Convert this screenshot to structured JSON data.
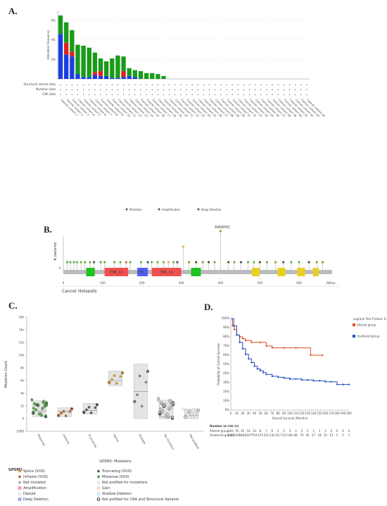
{
  "panel_labels": {
    "a": "A.",
    "b": "B.",
    "c": "C.",
    "d": "D."
  },
  "chart_data": [
    {
      "type": "bar",
      "id": "A",
      "ylabel": "Alteration Frequency",
      "yticks": [
        "2%",
        "4%",
        "6%"
      ],
      "ylim": [
        0,
        7
      ],
      "grid": true,
      "row_labels": [
        "Structural variant data",
        "Mutation data",
        "CNA data"
      ],
      "categories": [
        "Cancer cohort 1",
        "Cancer cohort 2",
        "Cancer cohort 3",
        "Cancer cohort 4",
        "Cancer cohort 5",
        "Cancer cohort 6",
        "Cancer cohort 7",
        "Cancer cohort 8",
        "Cancer cohort 9",
        "Cancer cohort 10",
        "Cancer cohort 11",
        "Cancer cohort 12",
        "Cancer cohort 13",
        "Cancer cohort 14",
        "Cancer cohort 15",
        "Cancer cohort 16",
        "Cancer cohort 17",
        "Cancer cohort 18",
        "Cancer cohort 19",
        "Cancer cohort 20",
        "Cancer cohort 21",
        "Cancer cohort 22",
        "Cancer cohort 23",
        "Cancer cohort 24",
        "Cancer cohort 25",
        "Cancer cohort 26",
        "Cancer cohort 27",
        "Cancer cohort 28",
        "Cancer cohort 29",
        "Cancer cohort 30",
        "Cancer cohort 31",
        "Cancer cohort 32",
        "Cancer cohort 33",
        "Cancer cohort 34",
        "Cancer cohort 35",
        "Cancer cohort 36",
        "Cancer cohort 37",
        "Cancer cohort 38",
        "Cancer cohort 39",
        "Cancer cohort 40",
        "Cancer cohort 41",
        "Cancer cohort 42",
        "Cancer cohort 43",
        "Cancer cohort 44"
      ],
      "series": [
        {
          "name": "Mutation",
          "color": "#1a9a1a",
          "values": [
            1.9,
            2.1,
            2.2,
            3.0,
            3.2,
            3.0,
            2.0,
            1.3,
            1.5,
            2.0,
            2.3,
            1.5,
            0.8,
            0.7,
            0.8,
            0.6,
            0.6,
            0.5,
            0.3,
            0,
            0,
            0,
            0,
            0,
            0,
            0,
            0,
            0,
            0,
            0,
            0,
            0,
            0,
            0,
            0,
            0,
            0,
            0,
            0,
            0,
            0,
            0,
            0,
            0
          ]
        },
        {
          "name": "Amplification",
          "color": "#e02020",
          "values": [
            0,
            1.2,
            0.5,
            0,
            0,
            0,
            0.3,
            0.5,
            0,
            0,
            0,
            0.6,
            0,
            0,
            0,
            0,
            0,
            0,
            0,
            0,
            0,
            0,
            0,
            0,
            0,
            0,
            0,
            0,
            0,
            0,
            0,
            0,
            0,
            0,
            0,
            0,
            0,
            0,
            0,
            0,
            0,
            0,
            0,
            0
          ]
        },
        {
          "name": "Deep Deletion",
          "color": "#1a3de0",
          "values": [
            4.6,
            2.5,
            2.3,
            0.5,
            0.2,
            0.2,
            0.4,
            0.3,
            0.3,
            0.1,
            0.1,
            0.2,
            0.3,
            0.2,
            0,
            0,
            0,
            0,
            0,
            0,
            0,
            0,
            0,
            0,
            0,
            0,
            0,
            0,
            0,
            0,
            0,
            0,
            0,
            0,
            0,
            0,
            0,
            0,
            0,
            0,
            0,
            0,
            0,
            0
          ]
        }
      ],
      "legend": [
        "Mutation",
        "Amplification",
        "Deep Deletion"
      ]
    },
    {
      "type": "scatter",
      "id": "B",
      "ylabel": "# patients",
      "annotation": "R400H/C",
      "xlabel": "Cancer Hotspots",
      "xticks": [
        "0",
        "100",
        "200",
        "300",
        "400",
        "500",
        "600"
      ],
      "length_label": "684aa",
      "domains": [
        "TPR_12",
        "TP...",
        "TPR_12"
      ],
      "lollipops": [
        {
          "x": 10,
          "y": 1,
          "c": "#6ab04c"
        },
        {
          "x": 18,
          "y": 1,
          "c": "#6ab04c"
        },
        {
          "x": 27,
          "y": 1,
          "c": "#6ab04c"
        },
        {
          "x": 35,
          "y": 1,
          "c": "#6ab04c"
        },
        {
          "x": 45,
          "y": 1,
          "c": "#6ab04c"
        },
        {
          "x": 55,
          "y": 1,
          "c": "#6ab04c"
        },
        {
          "x": 68,
          "y": 1,
          "c": "#6ab04c"
        },
        {
          "x": 78,
          "y": 1,
          "c": "#555"
        },
        {
          "x": 95,
          "y": 1,
          "c": "#6ab04c"
        },
        {
          "x": 105,
          "y": 1,
          "c": "#6ab04c"
        },
        {
          "x": 130,
          "y": 1,
          "c": "#6ab04c"
        },
        {
          "x": 145,
          "y": 1,
          "c": "#6ab04c"
        },
        {
          "x": 160,
          "y": 1,
          "c": "#c08040"
        },
        {
          "x": 170,
          "y": 1,
          "c": "#6ab04c"
        },
        {
          "x": 198,
          "y": 1,
          "c": "#6ab04c"
        },
        {
          "x": 215,
          "y": 1,
          "c": "#555"
        },
        {
          "x": 225,
          "y": 1,
          "c": "#6ab04c"
        },
        {
          "x": 240,
          "y": 1,
          "c": "#6ab04c"
        },
        {
          "x": 255,
          "y": 1,
          "c": "#6ab04c"
        },
        {
          "x": 268,
          "y": 1,
          "c": "#e0b050"
        },
        {
          "x": 280,
          "y": 1,
          "c": "#6ab04c"
        },
        {
          "x": 290,
          "y": 1,
          "c": "#555"
        },
        {
          "x": 305,
          "y": 2,
          "c": "#e0b050"
        },
        {
          "x": 320,
          "y": 1,
          "c": "#6ab04c"
        },
        {
          "x": 338,
          "y": 1,
          "c": "#555"
        },
        {
          "x": 355,
          "y": 1,
          "c": "#6ab04c"
        },
        {
          "x": 370,
          "y": 1,
          "c": "#555"
        },
        {
          "x": 385,
          "y": 1,
          "c": "#6ab04c"
        },
        {
          "x": 400,
          "y": 3,
          "c": "#6ab04c"
        },
        {
          "x": 420,
          "y": 1,
          "c": "#555"
        },
        {
          "x": 435,
          "y": 1,
          "c": "#6ab04c"
        },
        {
          "x": 452,
          "y": 1,
          "c": "#555"
        },
        {
          "x": 470,
          "y": 1,
          "c": "#6ab04c"
        },
        {
          "x": 485,
          "y": 1,
          "c": "#6ab04c"
        },
        {
          "x": 500,
          "y": 1,
          "c": "#555"
        },
        {
          "x": 518,
          "y": 1,
          "c": "#6ab04c"
        },
        {
          "x": 540,
          "y": 1,
          "c": "#6ab04c"
        },
        {
          "x": 560,
          "y": 1,
          "c": "#555"
        },
        {
          "x": 580,
          "y": 1,
          "c": "#6ab04c"
        },
        {
          "x": 600,
          "y": 1,
          "c": "#6ab04c"
        },
        {
          "x": 625,
          "y": 1,
          "c": "#555"
        },
        {
          "x": 645,
          "y": 1,
          "c": "#6ab04c"
        },
        {
          "x": 660,
          "y": 1,
          "c": "#6ab04c"
        }
      ]
    },
    {
      "type": "scatter",
      "id": "C",
      "ylabel": "Mutation Count",
      "xlabel": "GPSM2: Mutations",
      "yticks": [
        "-2000",
        "0",
        "2k",
        "4k",
        "6k",
        "8k",
        "10k",
        "12k",
        "14k",
        "16k"
      ],
      "ylim": [
        -2000,
        16000
      ],
      "categories": [
        "Missense",
        "Inframe",
        "Truncating",
        "Splice",
        "Multiple",
        "No mutation",
        "Not profiled"
      ],
      "boxes": [
        {
          "q1": 300,
          "q3": 2800,
          "median": 1200
        },
        {
          "q1": 300,
          "q3": 1700,
          "median": 1100
        },
        {
          "q1": 700,
          "q3": 2400,
          "median": 1300
        },
        {
          "q1": 5200,
          "q3": 7500,
          "median": 6000
        },
        {
          "q1": 0,
          "q3": 8600,
          "median": 4300
        },
        {
          "q1": 0,
          "q3": 2900,
          "median": 300
        },
        {
          "q1": 0,
          "q3": 1500,
          "median": 500
        }
      ]
    },
    {
      "type": "line",
      "id": "D",
      "title": "Logrank Test P-Value: 0.0712",
      "ylabel": "Probability of Overall Survival",
      "xlabel": "Overall Survival (Months)",
      "yticks": [
        "0%",
        "10%",
        "20%",
        "30%",
        "40%",
        "50%",
        "60%",
        "70%",
        "80%",
        "90%",
        "100%"
      ],
      "xticks": [
        "0",
        "10",
        "20",
        "30",
        "40",
        "50",
        "60",
        "70",
        "80",
        "90",
        "100",
        "110",
        "120",
        "130",
        "140",
        "150",
        "160",
        "170",
        "180",
        "190",
        "200"
      ],
      "series": [
        {
          "name": "Altered group",
          "color": "#e05020",
          "x": [
            0,
            3,
            6,
            10,
            15,
            20,
            25,
            35,
            50,
            60,
            70,
            90,
            110,
            135,
            155
          ],
          "y": [
            100,
            92,
            88,
            82,
            80,
            78,
            76,
            74,
            74,
            70,
            68,
            68,
            68,
            60,
            60
          ]
        },
        {
          "name": "Unaltered group",
          "color": "#2050c0",
          "x": [
            0,
            5,
            10,
            15,
            20,
            25,
            30,
            35,
            40,
            45,
            50,
            55,
            60,
            70,
            80,
            90,
            100,
            110,
            120,
            130,
            140,
            150,
            160,
            170,
            180,
            190,
            200
          ],
          "y": [
            100,
            92,
            82,
            74,
            67,
            61,
            56,
            52,
            48,
            45,
            43,
            41,
            39,
            37,
            36,
            35,
            34,
            34,
            33,
            33,
            32,
            32,
            31,
            31,
            28,
            28,
            28
          ]
        }
      ],
      "risk_header": "Number at risk (n)",
      "risk_rows": [
        {
          "label": "Altered group",
          "values": [
            "104",
            "78",
            "45",
            "33",
            "12",
            "8",
            "7",
            "6",
            "5",
            "5",
            "3",
            "3",
            "3",
            "2",
            "1",
            "1",
            "1",
            "0",
            "0",
            "0",
            "0"
          ]
        },
        {
          "label": "Unaltered group",
          "values": [
            "4098",
            "3100",
            "1802",
            "1207",
            "704",
            "474",
            "331",
            "234",
            "167",
            "133",
            "108",
            "86",
            "70",
            "45",
            "27",
            "18",
            "14",
            "13",
            "5",
            "2",
            "1"
          ]
        }
      ]
    }
  ],
  "legend_c": {
    "title": "GPSM2",
    "items": [
      {
        "label": "Splice (VUS)",
        "color": "#e8a020",
        "shape": "dot"
      },
      {
        "label": "Truncating (VUS)",
        "color": "#555555",
        "shape": "dot"
      },
      {
        "label": "Inframe (VUS)",
        "color": "#c06020",
        "shape": "dot"
      },
      {
        "label": "Missense (VUS)",
        "color": "#40a040",
        "shape": "dot"
      },
      {
        "label": "Not mutated",
        "color": "#aaaaaa",
        "shape": "dot"
      },
      {
        "label": "Not profiled for mutations",
        "color": "#ffffff",
        "shape": "dot"
      },
      {
        "label": "Amplification",
        "color": "#e02020",
        "shape": "ring"
      },
      {
        "label": "Gain",
        "color": "#f0a0a0",
        "shape": "ring"
      },
      {
        "label": "Diploid",
        "color": "#d0d0d0",
        "shape": "ring"
      },
      {
        "label": "Shallow Deletion",
        "color": "#80d0f0",
        "shape": "ring"
      },
      {
        "label": "Deep Deletion",
        "color": "#2040e0",
        "shape": "ring"
      },
      {
        "label": "Not profiled for CNA and Structural Variants",
        "color": "#111111",
        "shape": "ring"
      }
    ]
  }
}
